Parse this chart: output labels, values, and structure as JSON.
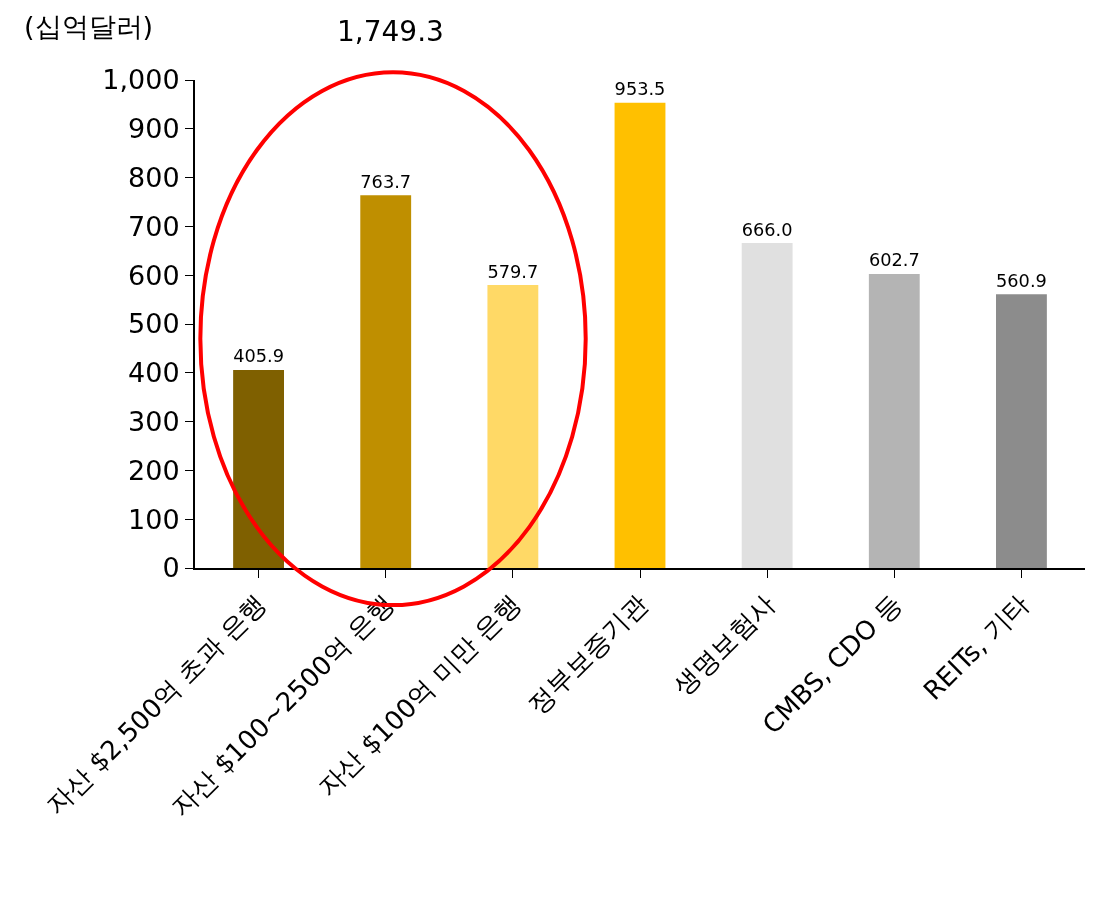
{
  "chart_data": {
    "type": "bar",
    "ylabel": "(십억달러)",
    "categories": [
      "자산 $2,500억 초과 은행",
      "자산 $100~2500억 은행",
      "자산 $100억 미만 은행",
      "정부보증기관",
      "생명보험사",
      "CMBS, CDO 등",
      "REITs, 기타"
    ],
    "values": [
      405.9,
      763.7,
      579.7,
      953.5,
      666.0,
      602.7,
      560.9
    ],
    "value_labels": [
      "405.9",
      "763.7",
      "579.7",
      "953.5",
      "666.0",
      "602.7",
      "560.9"
    ],
    "colors": [
      "#7f6000",
      "#bf8f00",
      "#ffd966",
      "#ffc000",
      "#e0e0e0",
      "#b4b4b4",
      "#8c8c8c"
    ],
    "ylim": [
      0,
      1000
    ],
    "yticks": [
      0,
      100,
      200,
      300,
      400,
      500,
      600,
      700,
      800,
      900,
      {
        "value": 1000,
        "label": "1,000"
      }
    ],
    "grid": false,
    "annotations": [
      "1,749.3"
    ]
  }
}
